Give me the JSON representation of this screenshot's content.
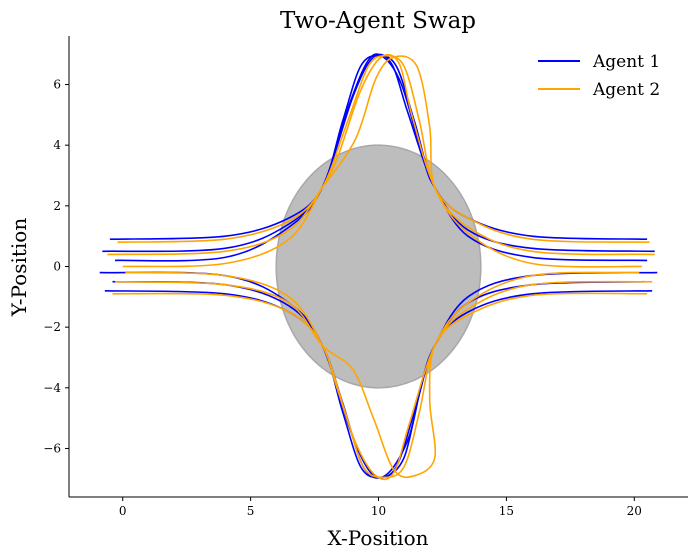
{
  "chart_data": {
    "type": "line",
    "title": "Two-Agent Swap",
    "xlabel": "X-Position",
    "ylabel": "Y-Position",
    "xlim": [
      -2.1,
      22.1
    ],
    "ylim": [
      -7.6,
      7.6
    ],
    "xticks": [
      0,
      5,
      10,
      15,
      20
    ],
    "xtick_labels": [
      "0",
      "5",
      "10",
      "15",
      "20"
    ],
    "yticks": [
      -6,
      -4,
      -2,
      0,
      2,
      4,
      6
    ],
    "ytick_labels": [
      "−6",
      "−4",
      "−2",
      "0",
      "2",
      "4",
      "6"
    ],
    "grid": false,
    "legend": "top-right",
    "obstacle": {
      "shape": "ellipse",
      "center": [
        10,
        0
      ],
      "radius_x": 4,
      "radius_y": 4,
      "color": "#bdbdbd"
    },
    "series": [
      {
        "name": "Agent 1",
        "color": "#0000ff",
        "trajectories": [
          {
            "id": "upper-wide",
            "points": [
              [
                -0.5,
                0.9
              ],
              [
                4,
                1.0
              ],
              [
                6.5,
                1.6
              ],
              [
                7.8,
                2.6
              ],
              [
                8.6,
                4.8
              ],
              [
                9.3,
                6.6
              ],
              [
                10,
                6.95
              ],
              [
                10.7,
                6.6
              ],
              [
                11.4,
                4.8
              ],
              [
                12.2,
                2.6
              ],
              [
                13.5,
                1.6
              ],
              [
                16,
                1.0
              ],
              [
                20.5,
                0.9
              ]
            ]
          },
          {
            "id": "upper-mid",
            "points": [
              [
                -0.8,
                0.5
              ],
              [
                4,
                0.6
              ],
              [
                6.5,
                1.4
              ],
              [
                7.8,
                2.6
              ],
              [
                8.8,
                5.2
              ],
              [
                9.6,
                6.8
              ],
              [
                10.2,
                6.9
              ],
              [
                10.9,
                6.0
              ],
              [
                11.6,
                4.0
              ],
              [
                12.2,
                2.6
              ],
              [
                13.5,
                1.2
              ],
              [
                16,
                0.6
              ],
              [
                20.8,
                0.5
              ]
            ]
          },
          {
            "id": "upper-tight",
            "points": [
              [
                -0.3,
                0.2
              ],
              [
                4,
                0.3
              ],
              [
                6.5,
                1.3
              ],
              [
                7.8,
                2.6
              ],
              [
                9.0,
                5.6
              ],
              [
                9.8,
                6.9
              ],
              [
                10.5,
                6.7
              ],
              [
                11.1,
                5.2
              ],
              [
                11.8,
                3.4
              ],
              [
                12.2,
                2.6
              ],
              [
                13.5,
                1.0
              ],
              [
                16,
                0.3
              ],
              [
                20.5,
                0.2
              ]
            ]
          },
          {
            "id": "lower-wide",
            "points": [
              [
                -0.7,
                -0.8
              ],
              [
                4,
                -0.9
              ],
              [
                6.5,
                -1.5
              ],
              [
                7.8,
                -2.6
              ],
              [
                8.6,
                -4.8
              ],
              [
                9.3,
                -6.6
              ],
              [
                10,
                -6.95
              ],
              [
                10.7,
                -6.6
              ],
              [
                11.4,
                -4.8
              ],
              [
                12.2,
                -2.6
              ],
              [
                13.5,
                -1.5
              ],
              [
                16,
                -0.9
              ],
              [
                20.7,
                -0.8
              ]
            ]
          },
          {
            "id": "lower-mid",
            "points": [
              [
                -0.4,
                -0.5
              ],
              [
                4,
                -0.6
              ],
              [
                6.5,
                -1.3
              ],
              [
                7.8,
                -2.6
              ],
              [
                8.6,
                -4.5
              ],
              [
                9.4,
                -6.6
              ],
              [
                10.2,
                -6.95
              ],
              [
                11.0,
                -6.3
              ],
              [
                11.6,
                -4.2
              ],
              [
                12.2,
                -2.6
              ],
              [
                13.5,
                -1.2
              ],
              [
                16,
                -0.6
              ],
              [
                20.4,
                -0.5
              ]
            ]
          },
          {
            "id": "lower-tight",
            "points": [
              [
                -0.9,
                -0.2
              ],
              [
                4,
                -0.3
              ],
              [
                6.5,
                -1.2
              ],
              [
                7.8,
                -2.6
              ],
              [
                8.9,
                -5.4
              ],
              [
                9.7,
                -6.8
              ],
              [
                10.4,
                -6.8
              ],
              [
                11.2,
                -5.6
              ],
              [
                11.7,
                -3.8
              ],
              [
                12.2,
                -2.6
              ],
              [
                13.5,
                -1.0
              ],
              [
                16,
                -0.3
              ],
              [
                20.9,
                -0.2
              ]
            ]
          }
        ]
      },
      {
        "name": "Agent 2",
        "color": "#ffa500",
        "trajectories": [
          {
            "id": "upper-wide",
            "points": [
              [
                20.6,
                0.8
              ],
              [
                16,
                0.9
              ],
              [
                13.5,
                1.6
              ],
              [
                12.2,
                2.6
              ],
              [
                11.6,
                4.8
              ],
              [
                11.0,
                6.6
              ],
              [
                10.3,
                6.95
              ],
              [
                9.6,
                6.6
              ],
              [
                8.8,
                4.8
              ],
              [
                7.8,
                2.6
              ],
              [
                6.5,
                1.5
              ],
              [
                4,
                0.9
              ],
              [
                -0.2,
                0.8
              ]
            ]
          },
          {
            "id": "upper-late",
            "points": [
              [
                20.8,
                0.4
              ],
              [
                16,
                0.5
              ],
              [
                13.5,
                1.3
              ],
              [
                12.2,
                2.6
              ],
              [
                12.0,
                4.6
              ],
              [
                11.5,
                6.6
              ],
              [
                10.6,
                6.9
              ],
              [
                9.9,
                6.2
              ],
              [
                9.1,
                4.2
              ],
              [
                7.8,
                2.6
              ],
              [
                6.5,
                1.2
              ],
              [
                4,
                0.5
              ],
              [
                -0.6,
                0.4
              ]
            ]
          },
          {
            "id": "upper-mid",
            "points": [
              [
                20.3,
                0.0
              ],
              [
                16,
                0.1
              ],
              [
                13.5,
                1.1
              ],
              [
                12.2,
                2.6
              ],
              [
                11.3,
                5.0
              ],
              [
                10.8,
                6.7
              ],
              [
                10.1,
                6.9
              ],
              [
                9.3,
                5.8
              ],
              [
                8.4,
                3.6
              ],
              [
                7.8,
                2.6
              ],
              [
                6.5,
                0.9
              ],
              [
                4,
                0.1
              ],
              [
                0.0,
                0.0
              ]
            ]
          },
          {
            "id": "lower-wide",
            "points": [
              [
                20.5,
                -0.9
              ],
              [
                16,
                -0.95
              ],
              [
                13.5,
                -1.6
              ],
              [
                12.2,
                -2.6
              ],
              [
                11.6,
                -4.8
              ],
              [
                11.0,
                -6.6
              ],
              [
                10.2,
                -6.95
              ],
              [
                9.4,
                -6.6
              ],
              [
                8.7,
                -4.8
              ],
              [
                7.8,
                -2.6
              ],
              [
                6.5,
                -1.5
              ],
              [
                4,
                -0.95
              ],
              [
                -0.4,
                -0.9
              ]
            ]
          },
          {
            "id": "lower-late",
            "points": [
              [
                20.7,
                -0.5
              ],
              [
                16,
                -0.6
              ],
              [
                13.5,
                -1.4
              ],
              [
                12.2,
                -2.6
              ],
              [
                12.0,
                -4.4
              ],
              [
                12.2,
                -6.3
              ],
              [
                11.4,
                -6.9
              ],
              [
                10.6,
                -6.7
              ],
              [
                9.8,
                -5.0
              ],
              [
                9.0,
                -3.4
              ],
              [
                7.8,
                -2.6
              ],
              [
                6.5,
                -1.2
              ],
              [
                4,
                -0.6
              ],
              [
                -0.3,
                -0.5
              ]
            ]
          },
          {
            "id": "lower-mid",
            "points": [
              [
                20.2,
                -0.2
              ],
              [
                16,
                -0.3
              ],
              [
                13.5,
                -1.2
              ],
              [
                12.2,
                -2.6
              ],
              [
                11.2,
                -5.2
              ],
              [
                10.6,
                -6.8
              ],
              [
                9.9,
                -6.9
              ],
              [
                9.1,
                -5.8
              ],
              [
                8.3,
                -3.8
              ],
              [
                7.8,
                -2.6
              ],
              [
                6.5,
                -1.0
              ],
              [
                4,
                -0.3
              ],
              [
                0.1,
                -0.2
              ]
            ]
          }
        ]
      }
    ]
  }
}
